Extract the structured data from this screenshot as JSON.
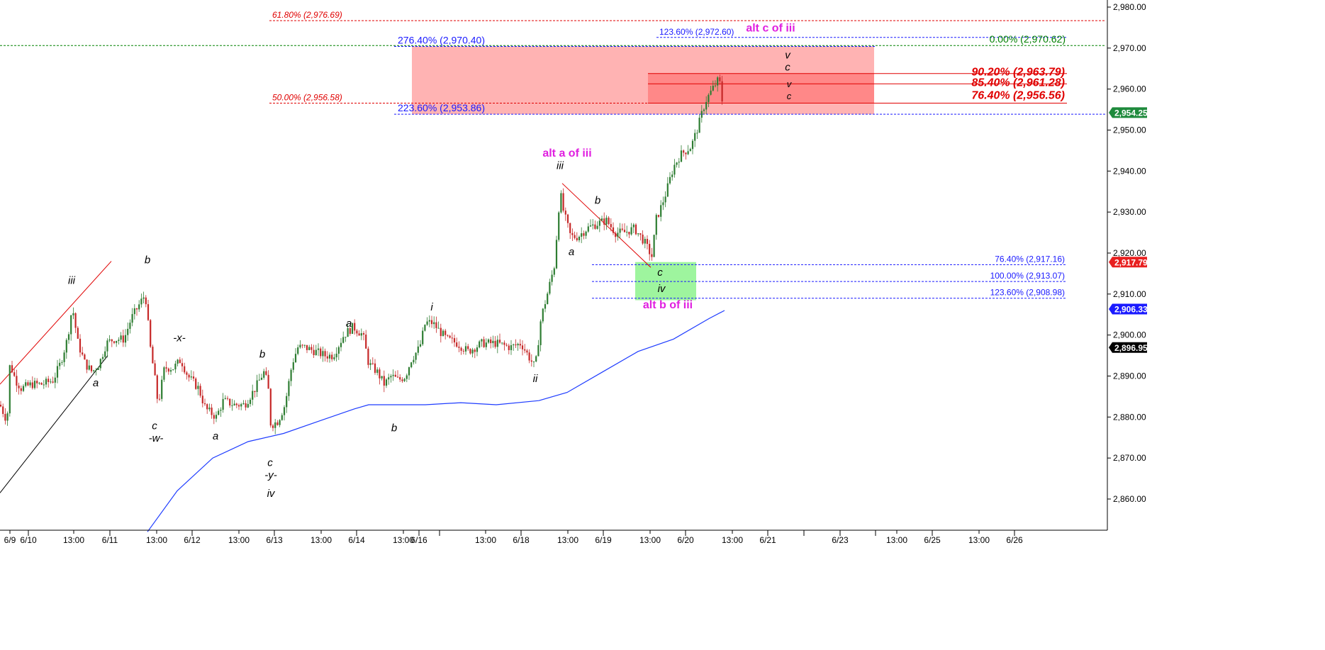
{
  "colors": {
    "candle_up": "#2e7d32",
    "candle_down": "#c62828",
    "sma": "#1e3cff",
    "fib_red": "#e00000",
    "fib_blue": "#1a1aff",
    "fib_green": "#008000",
    "magenta": "#e020e0",
    "zone_light": "#ffb3b3",
    "zone_dark": "#ff8080",
    "zone_green": "#9ef59e"
  },
  "chart_data": {
    "type": "line",
    "description_type": "candlestick",
    "ylim": [
      2852,
      2982
    ],
    "y_ticks": [
      "2,980.00",
      "2,970.00",
      "2,960.00",
      "2,950.00",
      "2,940.00",
      "2,930.00",
      "2,920.00",
      "2,910.00",
      "2,900.00",
      "2,890.00",
      "2,880.00",
      "2,870.00",
      "2,860.00"
    ],
    "y_tick_values": [
      2980,
      2970,
      2960,
      2950,
      2940,
      2930,
      2920,
      2910,
      2900,
      2890,
      2880,
      2870,
      2860
    ],
    "x_ticks": [
      "6/9",
      "6/10",
      "13:00",
      "6/11",
      "13:00",
      "6/12",
      "13:00",
      "6/13",
      "13:00",
      "6/14",
      "13:00",
      "6/16",
      "13:00",
      "6/18",
      "13:00",
      "6/19",
      "13:00",
      "6/20",
      "13:00",
      "6/21",
      "6/23",
      "13:00",
      "6/25",
      "13:00",
      "6/26"
    ],
    "x_tick_positions": [
      14,
      40,
      104,
      155,
      221,
      271,
      337,
      387,
      453,
      503,
      569,
      591,
      685,
      735,
      801,
      851,
      917,
      967,
      1033,
      1083,
      1185,
      1265,
      1315,
      1381,
      1431
    ],
    "price_path": [
      [
        0,
        2883
      ],
      [
        10,
        2879
      ],
      [
        14,
        2893
      ],
      [
        22,
        2889
      ],
      [
        30,
        2887
      ],
      [
        45,
        2888
      ],
      [
        60,
        2888
      ],
      [
        75,
        2889
      ],
      [
        85,
        2893
      ],
      [
        95,
        2899
      ],
      [
        102,
        2907
      ],
      [
        110,
        2898
      ],
      [
        120,
        2893
      ],
      [
        130,
        2891
      ],
      [
        140,
        2893
      ],
      [
        150,
        2898
      ],
      [
        160,
        2899
      ],
      [
        175,
        2899
      ],
      [
        185,
        2904
      ],
      [
        195,
        2907
      ],
      [
        205,
        2910
      ],
      [
        212,
        2897
      ],
      [
        218,
        2890
      ],
      [
        223,
        2883
      ],
      [
        232,
        2892
      ],
      [
        245,
        2892
      ],
      [
        255,
        2894
      ],
      [
        265,
        2890
      ],
      [
        280,
        2887
      ],
      [
        290,
        2882
      ],
      [
        305,
        2880
      ],
      [
        315,
        2884
      ],
      [
        330,
        2883
      ],
      [
        345,
        2883
      ],
      [
        360,
        2887
      ],
      [
        372,
        2891
      ],
      [
        378,
        2888
      ],
      [
        382,
        2878
      ],
      [
        392,
        2879
      ],
      [
        402,
        2883
      ],
      [
        412,
        2893
      ],
      [
        420,
        2897
      ],
      [
        430,
        2897
      ],
      [
        445,
        2896
      ],
      [
        458,
        2895
      ],
      [
        470,
        2895
      ],
      [
        485,
        2900
      ],
      [
        498,
        2902
      ],
      [
        512,
        2900
      ],
      [
        520,
        2893
      ],
      [
        532,
        2891
      ],
      [
        542,
        2888
      ],
      [
        552,
        2890
      ],
      [
        562,
        2889
      ],
      [
        572,
        2890
      ],
      [
        580,
        2894
      ],
      [
        592,
        2897
      ],
      [
        600,
        2903
      ],
      [
        610,
        2903
      ],
      [
        620,
        2901
      ],
      [
        630,
        2899
      ],
      [
        645,
        2898
      ],
      [
        660,
        2896
      ],
      [
        680,
        2898
      ],
      [
        700,
        2898
      ],
      [
        720,
        2897
      ],
      [
        735,
        2898
      ],
      [
        745,
        2895
      ],
      [
        755,
        2892
      ],
      [
        763,
        2904
      ],
      [
        772,
        2910
      ],
      [
        782,
        2917
      ],
      [
        790,
        2935
      ],
      [
        795,
        2930
      ],
      [
        805,
        2924
      ],
      [
        815,
        2924
      ],
      [
        828,
        2926
      ],
      [
        840,
        2927
      ],
      [
        855,
        2928
      ],
      [
        868,
        2925
      ],
      [
        880,
        2925
      ],
      [
        895,
        2926
      ],
      [
        908,
        2923
      ],
      [
        920,
        2919
      ],
      [
        925,
        2928
      ],
      [
        932,
        2931
      ],
      [
        940,
        2935
      ],
      [
        950,
        2941
      ],
      [
        960,
        2944
      ],
      [
        975,
        2946
      ],
      [
        985,
        2951
      ],
      [
        995,
        2957
      ],
      [
        1005,
        2960
      ],
      [
        1012,
        2962
      ],
      [
        1017,
        2961
      ],
      [
        1020,
        2954
      ]
    ],
    "sma_path": [
      [
        208,
        2852
      ],
      [
        250,
        2862
      ],
      [
        300,
        2870
      ],
      [
        350,
        2874
      ],
      [
        400,
        2876
      ],
      [
        450,
        2879
      ],
      [
        500,
        2882
      ],
      [
        520,
        2883
      ],
      [
        600,
        2883
      ],
      [
        650,
        2883.5
      ],
      [
        700,
        2883
      ],
      [
        760,
        2884
      ],
      [
        800,
        2886
      ],
      [
        850,
        2891
      ],
      [
        900,
        2896
      ],
      [
        950,
        2899
      ],
      [
        1000,
        2904
      ],
      [
        1022,
        2906
      ]
    ],
    "price_markers": [
      {
        "label": "2,954.25",
        "value": 2954.25,
        "bg": "#1e8a3c"
      },
      {
        "label": "2,917.79",
        "value": 2917.79,
        "bg": "#e82020"
      },
      {
        "label": "2,906.33",
        "value": 2906.33,
        "bg": "#1a1aff"
      },
      {
        "label": "2,896.95",
        "value": 2896.95,
        "bg": "#000000"
      }
    ],
    "fib_lines": [
      {
        "label": "61.80% (2,976.69)",
        "value": 2976.69,
        "x1": 380,
        "x2": 1560,
        "color": "fib_red",
        "align": "left",
        "lx": 384,
        "style": "small-red"
      },
      {
        "label": "276.40% (2,970.40)",
        "value": 2970.4,
        "x1": 556,
        "x2": 1235,
        "color": "fib_blue",
        "align": "left",
        "lx": 561,
        "style": "blue"
      },
      {
        "label": "123.60% (2,972.60)",
        "value": 2972.6,
        "x1": 926,
        "x2": 1505,
        "color": "fib_blue",
        "align": "left",
        "lx": 930,
        "style": "small-blue"
      },
      {
        "label": "0.00% (2,970.62)",
        "value": 2970.62,
        "x1": 0,
        "x2": 1560,
        "color": "fib_green",
        "align": "right",
        "lx": 1503,
        "style": "green"
      },
      {
        "label": "50.00% (2,956.58)",
        "value": 2956.58,
        "x1": 380,
        "x2": 1235,
        "color": "fib_red",
        "align": "left",
        "lx": 384,
        "style": "small-red"
      },
      {
        "label": "223.60% (2,953.86)",
        "value": 2953.86,
        "x1": 556,
        "x2": 1560,
        "color": "fib_blue",
        "align": "left",
        "lx": 561,
        "style": "blue"
      },
      {
        "label": "76.40% (2,917.16)",
        "value": 2917.16,
        "x1": 835,
        "x2": 1505,
        "color": "fib_blue",
        "align": "right",
        "lx": 1502,
        "style": "small-blue"
      },
      {
        "label": "100.00% (2,913.07)",
        "value": 2913.07,
        "x1": 835,
        "x2": 1505,
        "color": "fib_blue",
        "align": "right",
        "lx": 1502,
        "style": "small-blue"
      },
      {
        "label": "123.60% (2,908.98)",
        "value": 2908.98,
        "x1": 835,
        "x2": 1505,
        "color": "fib_blue",
        "align": "right",
        "lx": 1502,
        "style": "small-blue"
      }
    ],
    "solid_red_lines": [
      {
        "label": "90.20% (2,963.79)",
        "value": 2963.79,
        "x1": 914,
        "x2": 1505
      },
      {
        "label": "85.40% (2,961.28)",
        "value": 2961.28,
        "x1": 914,
        "x2": 1505
      },
      {
        "label": "76.40% (2,956.56)",
        "value": 2956.56,
        "x1": 914,
        "x2": 1505
      }
    ],
    "zones": [
      {
        "name": "light-red-zone",
        "x1": 581,
        "x2": 1233,
        "y1": 2970.4,
        "y2": 2953.86,
        "color": "zone_light"
      },
      {
        "name": "dark-red-zone",
        "x1": 914,
        "x2": 1233,
        "y1": 2963.79,
        "y2": 2956.56,
        "color": "zone_dark"
      },
      {
        "name": "green-zone",
        "x1": 896,
        "x2": 982,
        "y1": 2917.8,
        "y2": 2908.5,
        "color": "zone_green"
      }
    ],
    "trend_lines": [
      {
        "x1": 0,
        "y1": 2888,
        "x2": 157,
        "y2": 2918,
        "color": "#e00000"
      },
      {
        "x1": 0,
        "y1": 2861.5,
        "x2": 152,
        "y2": 2895,
        "color": "#000000"
      },
      {
        "x1": 793,
        "y1": 2937,
        "x2": 918,
        "y2": 2916.5,
        "color": "#e00000"
      }
    ],
    "wave_labels": [
      {
        "text": "iii",
        "x": 101,
        "y": 2912.5,
        "weight": "normal"
      },
      {
        "text": "a",
        "x": 135,
        "y": 2887.5,
        "weight": "normal"
      },
      {
        "text": "b",
        "x": 208,
        "y": 2917.5,
        "weight": "normal"
      },
      {
        "text": "c",
        "x": 218,
        "y": 2877,
        "weight": "normal"
      },
      {
        "text": "-w-",
        "x": 220,
        "y": 2874,
        "weight": "normal"
      },
      {
        "text": "-x-",
        "x": 253,
        "y": 2898.5,
        "weight": "normal"
      },
      {
        "text": "a",
        "x": 304,
        "y": 2874.5,
        "weight": "normal"
      },
      {
        "text": "b",
        "x": 370,
        "y": 2894.5,
        "weight": "normal"
      },
      {
        "text": "c",
        "x": 381,
        "y": 2868,
        "weight": "normal"
      },
      {
        "text": "-y-",
        "x": 382,
        "y": 2865,
        "weight": "normal"
      },
      {
        "text": "iv",
        "x": 382,
        "y": 2860.5,
        "weight": "normal"
      },
      {
        "text": "a",
        "x": 492,
        "y": 2902,
        "weight": "normal"
      },
      {
        "text": "b",
        "x": 556,
        "y": 2876.5,
        "weight": "normal"
      },
      {
        "text": "i",
        "x": 609,
        "y": 2906,
        "weight": "normal"
      },
      {
        "text": "ii",
        "x": 755,
        "y": 2888.5,
        "weight": "normal"
      },
      {
        "text": "iii",
        "x": 790,
        "y": 2940.5,
        "weight": "normal"
      },
      {
        "text": "a",
        "x": 806,
        "y": 2919.5,
        "weight": "normal"
      },
      {
        "text": "b",
        "x": 843,
        "y": 2932,
        "weight": "normal"
      },
      {
        "text": "c",
        "x": 931,
        "y": 2914.5,
        "weight": "normal"
      },
      {
        "text": "iv",
        "x": 933,
        "y": 2910.5,
        "weight": "normal"
      },
      {
        "text": "v",
        "x": 1111,
        "y": 2967.5,
        "weight": "normal"
      },
      {
        "text": "c",
        "x": 1111,
        "y": 2964.5,
        "weight": "normal"
      },
      {
        "text": "v",
        "x": 1113,
        "y": 2960.5,
        "weight": "small"
      },
      {
        "text": "c",
        "x": 1113,
        "y": 2957.5,
        "weight": "small"
      }
    ],
    "magenta_labels": [
      {
        "text": "alt c of iii",
        "x": 1087,
        "y": 2974
      },
      {
        "text": "alt a of iii",
        "x": 800,
        "y": 2943.5
      },
      {
        "text": "alt b of iii",
        "x": 942,
        "y": 2906.5
      }
    ]
  }
}
